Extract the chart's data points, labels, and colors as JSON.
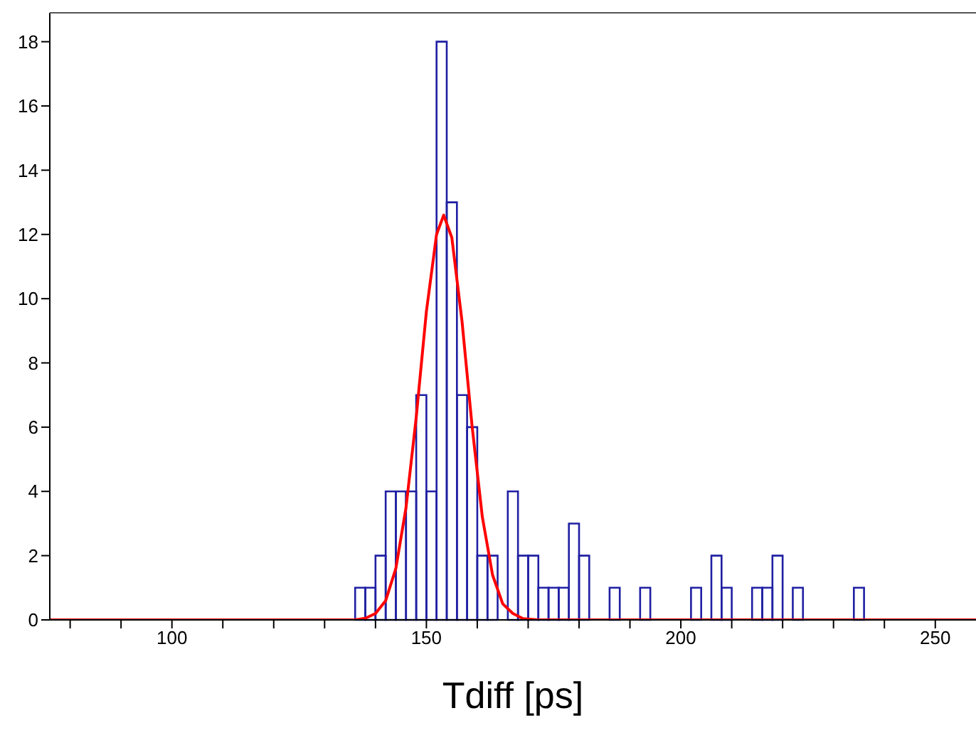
{
  "chart_data": {
    "type": "histogram",
    "xlabel": "Tdiff [ps]",
    "xlim": [
      76,
      258
    ],
    "ylim": [
      0,
      18.9
    ],
    "xticks": [
      {
        "value": 80,
        "label": null
      },
      {
        "value": 90,
        "label": null
      },
      100,
      {
        "value": 110,
        "label": null
      },
      {
        "value": 120,
        "label": null
      },
      {
        "value": 130,
        "label": null
      },
      {
        "value": 140,
        "label": null
      },
      150,
      {
        "value": 160,
        "label": null
      },
      {
        "value": 170,
        "label": null
      },
      {
        "value": 180,
        "label": null
      },
      {
        "value": 190,
        "label": null
      },
      200,
      {
        "value": 210,
        "label": null
      },
      {
        "value": 220,
        "label": null
      },
      {
        "value": 230,
        "label": null
      },
      {
        "value": 240,
        "label": null
      },
      250
    ],
    "yticks": [
      0,
      2,
      4,
      6,
      8,
      10,
      12,
      14,
      16,
      18
    ],
    "grid": false,
    "series": [
      {
        "color": "#1f1fa3",
        "bins": [
          136,
          138,
          140,
          142,
          144,
          146,
          148,
          150,
          152,
          154,
          156,
          158,
          160,
          162,
          164,
          166,
          168,
          170,
          172,
          174,
          176,
          178,
          180,
          182,
          184,
          186,
          188,
          190,
          192,
          194,
          196,
          198,
          200,
          202,
          204,
          206,
          208,
          210,
          212,
          214,
          216,
          218,
          220,
          222,
          224,
          226,
          228,
          230,
          232,
          234,
          236
        ],
        "values": [
          1,
          1,
          2,
          4,
          4,
          4,
          7,
          4,
          18,
          13,
          7,
          6,
          2,
          2,
          0,
          4,
          2,
          2,
          1,
          1,
          1,
          3,
          2,
          0,
          0,
          1,
          0,
          0,
          1,
          0,
          0,
          0,
          0,
          1,
          0,
          2,
          1,
          0,
          0,
          1,
          1,
          2,
          0,
          1,
          0,
          0,
          0,
          0,
          0,
          1
        ]
      },
      {
        "type": "line",
        "color": "#ff0000",
        "marker": "none",
        "x": [
          76,
          136,
          138,
          140,
          142,
          144,
          146,
          148,
          150,
          152,
          153.4,
          155,
          157,
          159,
          161,
          163,
          165,
          167,
          169,
          172,
          258
        ],
        "values": [
          0,
          0,
          0.05,
          0.2,
          0.6,
          1.6,
          3.5,
          6.3,
          9.6,
          12,
          12.6,
          11.9,
          9.3,
          6,
          3.2,
          1.4,
          0.5,
          0.2,
          0.04,
          0,
          0
        ]
      }
    ]
  }
}
